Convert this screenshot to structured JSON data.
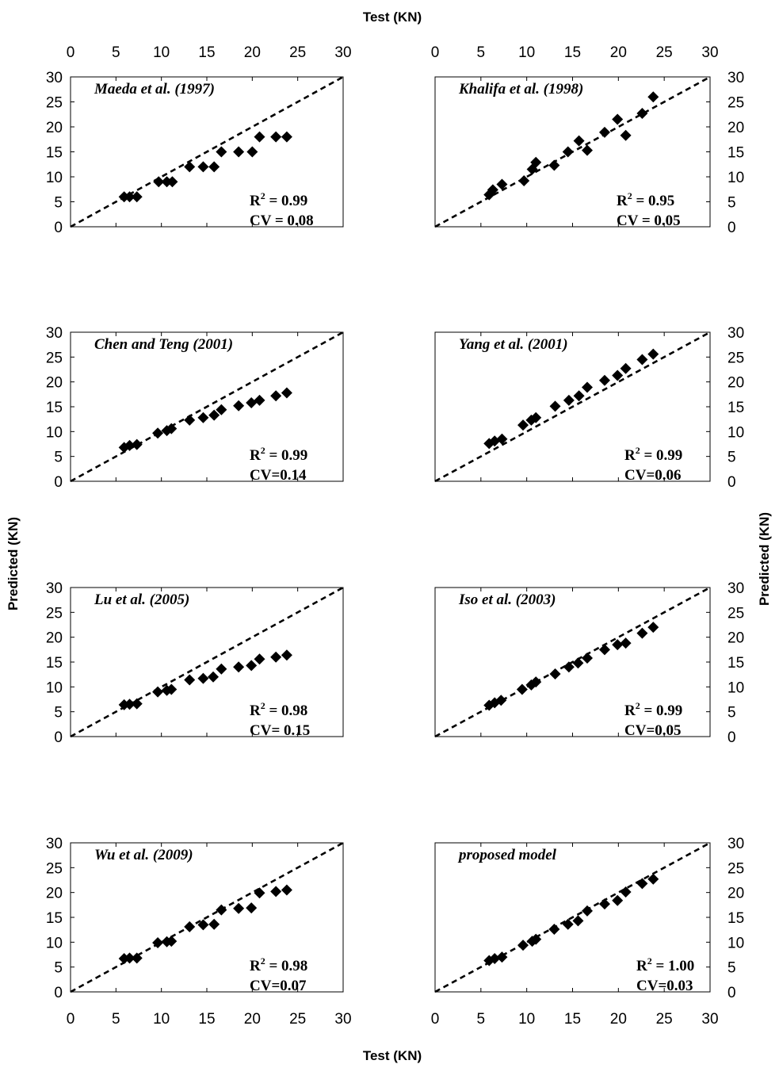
{
  "labels": {
    "top_x": "Test (KN)",
    "bottom_x": "Test (KN)",
    "left_y": "Predicted (KN)",
    "right_y": "Predicted (KN)"
  },
  "colors": {
    "marker": "#000000",
    "line": "#000000"
  },
  "chart_data": [
    {
      "type": "scatter",
      "title": "Maeda et al. (1997)",
      "r2_label": "R",
      "r2_sup": "2",
      "r2_value": " = 0.99",
      "cv_text": "CV = 0.08",
      "xlim": [
        0,
        30
      ],
      "ylim": [
        0,
        30
      ],
      "xticks": [
        "0",
        "5",
        "10",
        "15",
        "20",
        "25",
        "30"
      ],
      "yticks": [
        "0",
        "5",
        "10",
        "15",
        "20",
        "25",
        "30"
      ],
      "reference_line": "y = x",
      "x": [
        5.9,
        6.5,
        7.3,
        9.7,
        10.6,
        11.2,
        13.1,
        14.6,
        15.8,
        16.6,
        18.5,
        20.0,
        20.8,
        22.6,
        23.8
      ],
      "y": [
        6.0,
        6.0,
        6.0,
        9.0,
        9.0,
        9.0,
        12.0,
        12.0,
        12.0,
        15.0,
        15.0,
        15.0,
        18.0,
        18.0,
        18.0
      ]
    },
    {
      "type": "scatter",
      "title": "Khalifa et al. (1998)",
      "r2_label": "R",
      "r2_sup": "2",
      "r2_value": " = 0.95",
      "cv_text": "CV = 0.05",
      "xlim": [
        0,
        30
      ],
      "ylim": [
        0,
        30
      ],
      "xticks": [
        "0",
        "5",
        "10",
        "15",
        "20",
        "25",
        "30"
      ],
      "yticks": [
        "0",
        "5",
        "10",
        "15",
        "20",
        "25",
        "30"
      ],
      "reference_line": "y = x",
      "x": [
        5.9,
        6.3,
        7.3,
        9.7,
        10.6,
        11.0,
        13.0,
        14.5,
        15.7,
        16.6,
        18.5,
        19.9,
        20.8,
        22.6,
        23.8
      ],
      "y": [
        6.4,
        7.4,
        8.5,
        9.2,
        11.5,
        12.9,
        12.3,
        15.0,
        17.2,
        15.3,
        18.9,
        21.5,
        18.3,
        22.7,
        26.0
      ]
    },
    {
      "type": "scatter",
      "title": "Chen and Teng (2001)",
      "r2_label": "R",
      "r2_sup": "2",
      "r2_value": " = 0.99",
      "cv_text": "CV=0.14",
      "xlim": [
        0,
        30
      ],
      "ylim": [
        0,
        30
      ],
      "xticks": [
        "0",
        "5",
        "10",
        "15",
        "20",
        "25",
        "30"
      ],
      "yticks": [
        "0",
        "5",
        "10",
        "15",
        "20",
        "25",
        "30"
      ],
      "reference_line": "y = x",
      "x": [
        5.9,
        6.5,
        7.3,
        9.6,
        10.6,
        11.1,
        13.1,
        14.6,
        15.8,
        16.6,
        18.5,
        19.9,
        20.8,
        22.6,
        23.8
      ],
      "y": [
        6.8,
        7.2,
        7.4,
        9.7,
        10.2,
        10.6,
        12.3,
        12.8,
        13.3,
        14.4,
        15.2,
        15.8,
        16.3,
        17.2,
        17.8
      ]
    },
    {
      "type": "scatter",
      "title": "Yang et al. (2001)",
      "r2_label": "R",
      "r2_sup": "2",
      "r2_value": " = 0.99",
      "cv_text": "CV=0.06",
      "xlim": [
        0,
        30
      ],
      "ylim": [
        0,
        30
      ],
      "xticks": [
        "0",
        "5",
        "10",
        "15",
        "20",
        "25",
        "30"
      ],
      "yticks": [
        "0",
        "5",
        "10",
        "15",
        "20",
        "25",
        "30"
      ],
      "reference_line": "y = x",
      "x": [
        5.9,
        6.5,
        7.3,
        9.6,
        10.5,
        11.0,
        13.1,
        14.6,
        15.7,
        16.6,
        18.5,
        19.9,
        20.8,
        22.6,
        23.8
      ],
      "y": [
        7.6,
        8.1,
        8.5,
        11.3,
        12.3,
        12.8,
        15.1,
        16.3,
        17.2,
        18.9,
        20.3,
        21.3,
        22.7,
        24.5,
        25.6
      ]
    },
    {
      "type": "scatter",
      "title": "Lu et al. (2005)",
      "r2_label": "R",
      "r2_sup": "2",
      "r2_value": " = 0.98",
      "cv_text": "CV= 0.15",
      "xlim": [
        0,
        30
      ],
      "ylim": [
        0,
        30
      ],
      "xticks": [
        "0",
        "5",
        "10",
        "15",
        "20",
        "25",
        "30"
      ],
      "yticks": [
        "0",
        "5",
        "10",
        "15",
        "20",
        "25",
        "30"
      ],
      "reference_line": "y = x",
      "x": [
        5.9,
        6.5,
        7.3,
        9.6,
        10.6,
        11.1,
        13.1,
        14.6,
        15.7,
        16.6,
        18.5,
        19.9,
        20.8,
        22.6,
        23.8
      ],
      "y": [
        6.4,
        6.5,
        6.6,
        9.0,
        9.3,
        9.5,
        11.4,
        11.7,
        12.0,
        13.6,
        14.0,
        14.3,
        15.6,
        16.0,
        16.4
      ]
    },
    {
      "type": "scatter",
      "title": "Iso et al. (2003)",
      "r2_label": "R",
      "r2_sup": "2",
      "r2_value": " = 0.99",
      "cv_text": "CV=0.05",
      "xlim": [
        0,
        30
      ],
      "ylim": [
        0,
        30
      ],
      "xticks": [
        "0",
        "5",
        "10",
        "15",
        "20",
        "25",
        "30"
      ],
      "yticks": [
        "0",
        "5",
        "10",
        "15",
        "20",
        "25",
        "30"
      ],
      "reference_line": "y = x",
      "x": [
        5.9,
        6.5,
        7.2,
        9.5,
        10.5,
        11.0,
        13.1,
        14.6,
        15.6,
        16.6,
        18.5,
        19.9,
        20.8,
        22.6,
        23.8
      ],
      "y": [
        6.3,
        6.8,
        7.3,
        9.5,
        10.4,
        11.0,
        12.6,
        14.0,
        14.8,
        15.8,
        17.5,
        18.5,
        18.8,
        20.8,
        22.0
      ]
    },
    {
      "type": "scatter",
      "title": "Wu et al. (2009)",
      "r2_label": "R",
      "r2_sup": "2",
      "r2_value": " = 0.98",
      "cv_text": "CV=0.07",
      "xlim": [
        0,
        30
      ],
      "ylim": [
        0,
        30
      ],
      "xticks": [
        "0",
        "5",
        "10",
        "15",
        "20",
        "25",
        "30"
      ],
      "yticks": [
        "0",
        "5",
        "10",
        "15",
        "20",
        "25",
        "30"
      ],
      "reference_line": "y = x",
      "x": [
        5.9,
        6.5,
        7.3,
        9.6,
        10.6,
        11.1,
        13.1,
        14.6,
        15.8,
        16.6,
        18.5,
        19.9,
        20.8,
        22.6,
        23.8
      ],
      "y": [
        6.7,
        6.8,
        6.8,
        9.9,
        10.1,
        10.2,
        13.1,
        13.5,
        13.6,
        16.5,
        16.8,
        16.9,
        19.9,
        20.2,
        20.5
      ]
    },
    {
      "type": "scatter",
      "title": "proposed model",
      "r2_label": "R",
      "r2_sup": "2",
      "r2_value": " = 1.00",
      "cv_text": "CV=0.03",
      "xlim": [
        0,
        30
      ],
      "ylim": [
        0,
        30
      ],
      "xticks": [
        "0",
        "5",
        "10",
        "15",
        "20",
        "25",
        "30"
      ],
      "yticks": [
        "0",
        "5",
        "10",
        "15",
        "20",
        "25",
        "30"
      ],
      "reference_line": "y = x",
      "x": [
        5.9,
        6.5,
        7.3,
        9.6,
        10.6,
        11.0,
        13.0,
        14.5,
        15.6,
        16.6,
        18.5,
        19.9,
        20.8,
        22.6,
        23.8
      ],
      "y": [
        6.3,
        6.7,
        7.0,
        9.4,
        10.2,
        10.6,
        12.6,
        13.6,
        14.3,
        16.3,
        17.7,
        18.4,
        20.1,
        21.8,
        22.7
      ]
    }
  ]
}
